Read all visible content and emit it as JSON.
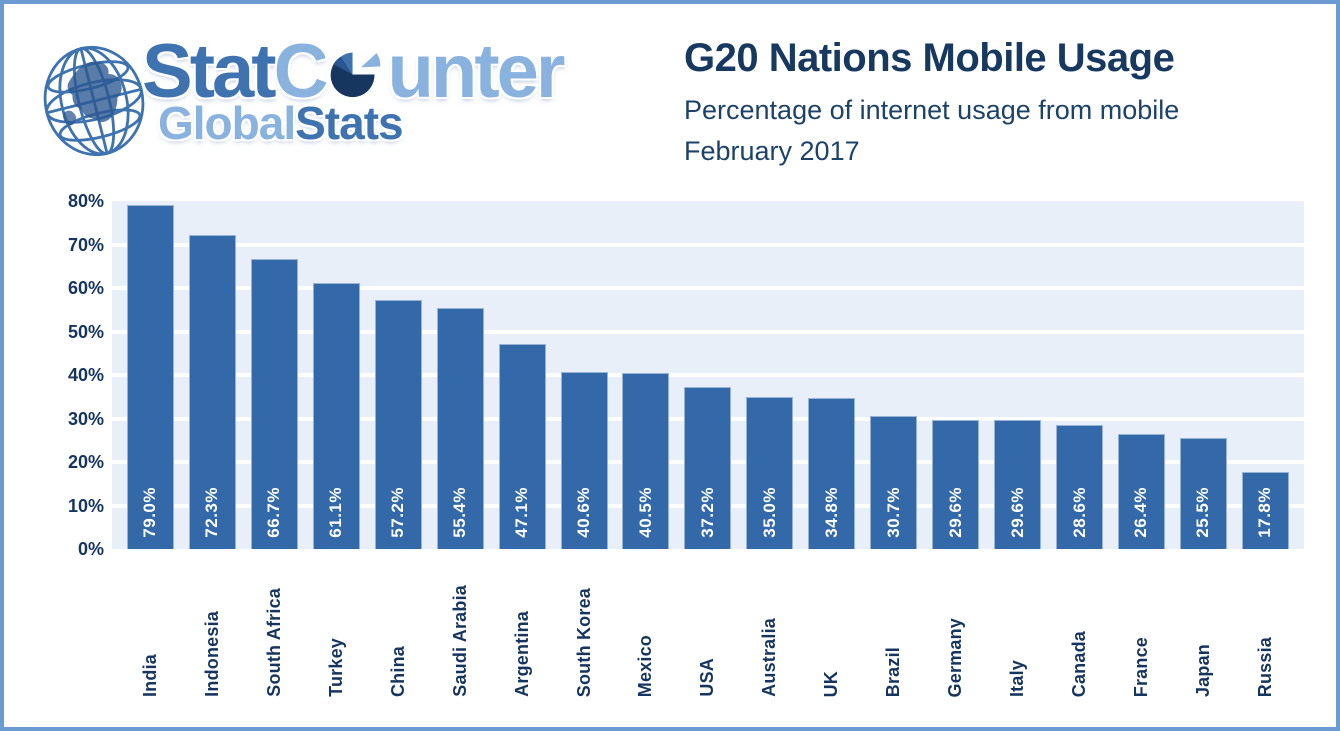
{
  "logo": {
    "brand_part1": "Stat",
    "brand_part2_c": "C",
    "brand_part2_rest": "unter",
    "sub_part1": "Global",
    "sub_part2": "Stats",
    "colors": {
      "medium_blue": "#3e73b0",
      "light_blue": "#89b2de",
      "navy": "#16355e"
    }
  },
  "header": {
    "title": "G20 Nations Mobile Usage",
    "subtitle_line1": "Percentage of internet usage from mobile",
    "subtitle_line2": "February 2017"
  },
  "chart_data": {
    "type": "bar",
    "title": "G20 Nations Mobile Usage",
    "subtitle": "Percentage of internet usage from mobile, February 2017",
    "categories": [
      "India",
      "Indonesia",
      "South Africa",
      "Turkey",
      "China",
      "Saudi Arabia",
      "Argentina",
      "South Korea",
      "Mexico",
      "USA",
      "Australia",
      "UK",
      "Brazil",
      "Germany",
      "Italy",
      "Canada",
      "France",
      "Japan",
      "Russia"
    ],
    "values": [
      79.0,
      72.3,
      66.7,
      61.1,
      57.2,
      55.4,
      47.1,
      40.6,
      40.5,
      37.2,
      35.0,
      34.8,
      30.7,
      29.6,
      29.6,
      28.6,
      26.4,
      25.5,
      17.8
    ],
    "value_labels": [
      "79.0%",
      "72.3%",
      "66.7%",
      "61.1%",
      "57.2%",
      "55.4%",
      "47.1%",
      "40.6%",
      "40.5%",
      "37.2%",
      "35.0%",
      "34.8%",
      "30.7%",
      "29.6%",
      "29.6%",
      "28.6%",
      "26.4%",
      "25.5%",
      "17.8%"
    ],
    "xlabel": "",
    "ylabel": "",
    "ylim": [
      0,
      80
    ],
    "ytick_labels": [
      "0%",
      "10%",
      "20%",
      "30%",
      "40%",
      "50%",
      "60%",
      "70%",
      "80%"
    ],
    "grid": true,
    "legend": false,
    "bar_color": "#3369a8",
    "plot_background": "#e9eff8",
    "gridline_color": "#ffffff",
    "axis_text_color": "#16355e"
  },
  "frame": {
    "border_color": "#6c9bd2",
    "background": "#ffffff"
  }
}
